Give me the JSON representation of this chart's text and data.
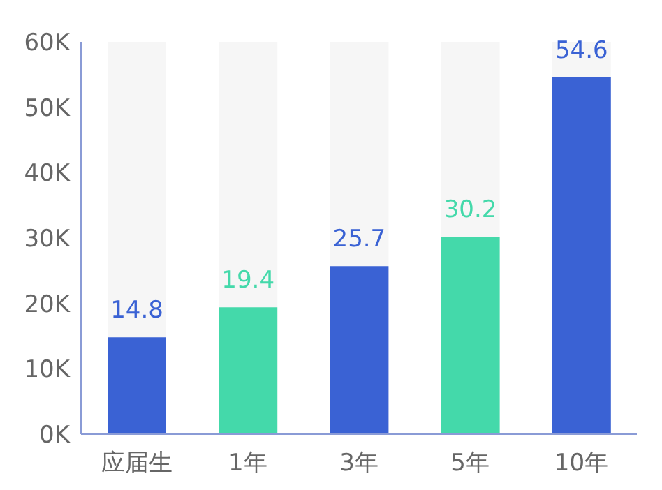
{
  "chart_data": {
    "type": "bar",
    "categories": [
      "应届生",
      "1年",
      "3年",
      "5年",
      "10年"
    ],
    "values": [
      14.8,
      19.4,
      25.7,
      30.2,
      54.6
    ],
    "colors": [
      "#3a62d4",
      "#44d9aa",
      "#3a62d4",
      "#44d9aa",
      "#3a62d4"
    ],
    "ylim": [
      0,
      60
    ],
    "yticks": [
      {
        "value": 0,
        "label": "0K"
      },
      {
        "value": 10,
        "label": "10K"
      },
      {
        "value": 20,
        "label": "20K"
      },
      {
        "value": 30,
        "label": "30K"
      },
      {
        "value": 40,
        "label": "40K"
      },
      {
        "value": 50,
        "label": "50K"
      },
      {
        "value": 60,
        "label": "60K"
      }
    ],
    "data_labels": true,
    "grid": false
  }
}
